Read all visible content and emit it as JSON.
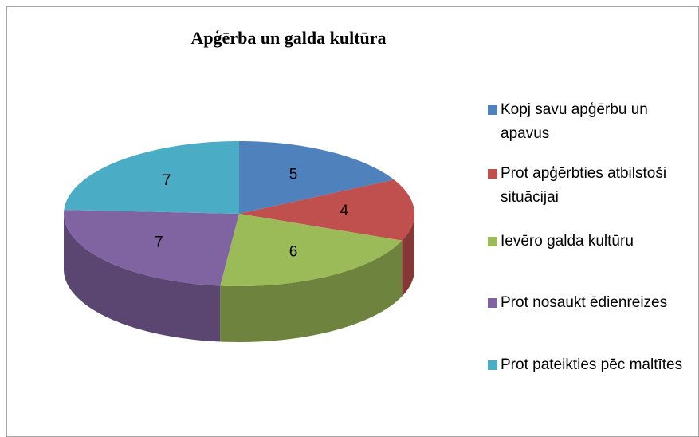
{
  "chart_data": {
    "type": "pie",
    "title": "Apģērba un galda kultūra",
    "categories": [
      "Kopj savu apģērbu un apavus",
      "Prot apģērbties atbilstoši situācijai",
      "Ievēro galda kultūru",
      "Prot nosaukt ēdienreizes",
      "Prot pateikties pēc maltītes"
    ],
    "values": [
      5,
      4,
      6,
      7,
      7
    ],
    "colors": [
      "#4f81bd",
      "#c0504d",
      "#9bbb59",
      "#8064a2",
      "#4bacc6"
    ],
    "legend": "right"
  }
}
